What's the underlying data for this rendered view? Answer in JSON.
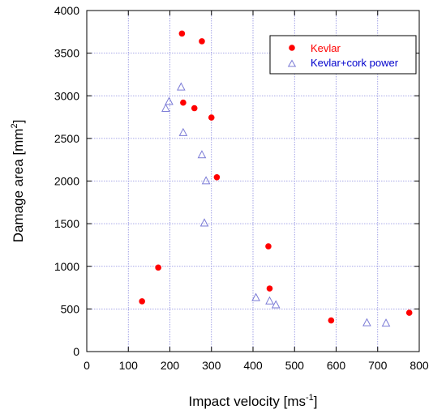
{
  "chart_data": {
    "type": "scatter",
    "xlabel": "Impact velocity [ms",
    "xlabel_sup": "-1",
    "xlabel_end": "]",
    "ylabel": "Damage area [mm",
    "ylabel_sup": "2",
    "ylabel_end": "]",
    "xlim": [
      0,
      800
    ],
    "ylim": [
      0,
      4000
    ],
    "xticks": [
      0,
      100,
      200,
      300,
      400,
      500,
      600,
      700,
      800
    ],
    "yticks": [
      0,
      500,
      1000,
      1500,
      2000,
      2500,
      3000,
      3500,
      4000
    ],
    "grid": true,
    "legend_position": "top-right",
    "series": [
      {
        "name": "Kevlar",
        "marker": "filled-circle",
        "color": "#ff0000",
        "label_color": "#ff0000",
        "points": [
          {
            "x": 133,
            "y": 590
          },
          {
            "x": 172,
            "y": 985
          },
          {
            "x": 229,
            "y": 3730
          },
          {
            "x": 232,
            "y": 2920
          },
          {
            "x": 259,
            "y": 2855
          },
          {
            "x": 277,
            "y": 3640
          },
          {
            "x": 300,
            "y": 2745
          },
          {
            "x": 313,
            "y": 2045
          },
          {
            "x": 437,
            "y": 1235
          },
          {
            "x": 440,
            "y": 740
          },
          {
            "x": 588,
            "y": 365
          },
          {
            "x": 776,
            "y": 455
          }
        ]
      },
      {
        "name": "Kevlar+cork power",
        "marker": "open-triangle",
        "color": "#7b7bd6",
        "label_color": "#0000cc",
        "points": [
          {
            "x": 190,
            "y": 2850
          },
          {
            "x": 198,
            "y": 2930
          },
          {
            "x": 227,
            "y": 3100
          },
          {
            "x": 232,
            "y": 2565
          },
          {
            "x": 277,
            "y": 2305
          },
          {
            "x": 287,
            "y": 2000
          },
          {
            "x": 283,
            "y": 1505
          },
          {
            "x": 407,
            "y": 630
          },
          {
            "x": 440,
            "y": 590
          },
          {
            "x": 455,
            "y": 545
          },
          {
            "x": 674,
            "y": 335
          },
          {
            "x": 720,
            "y": 330
          }
        ]
      }
    ]
  }
}
